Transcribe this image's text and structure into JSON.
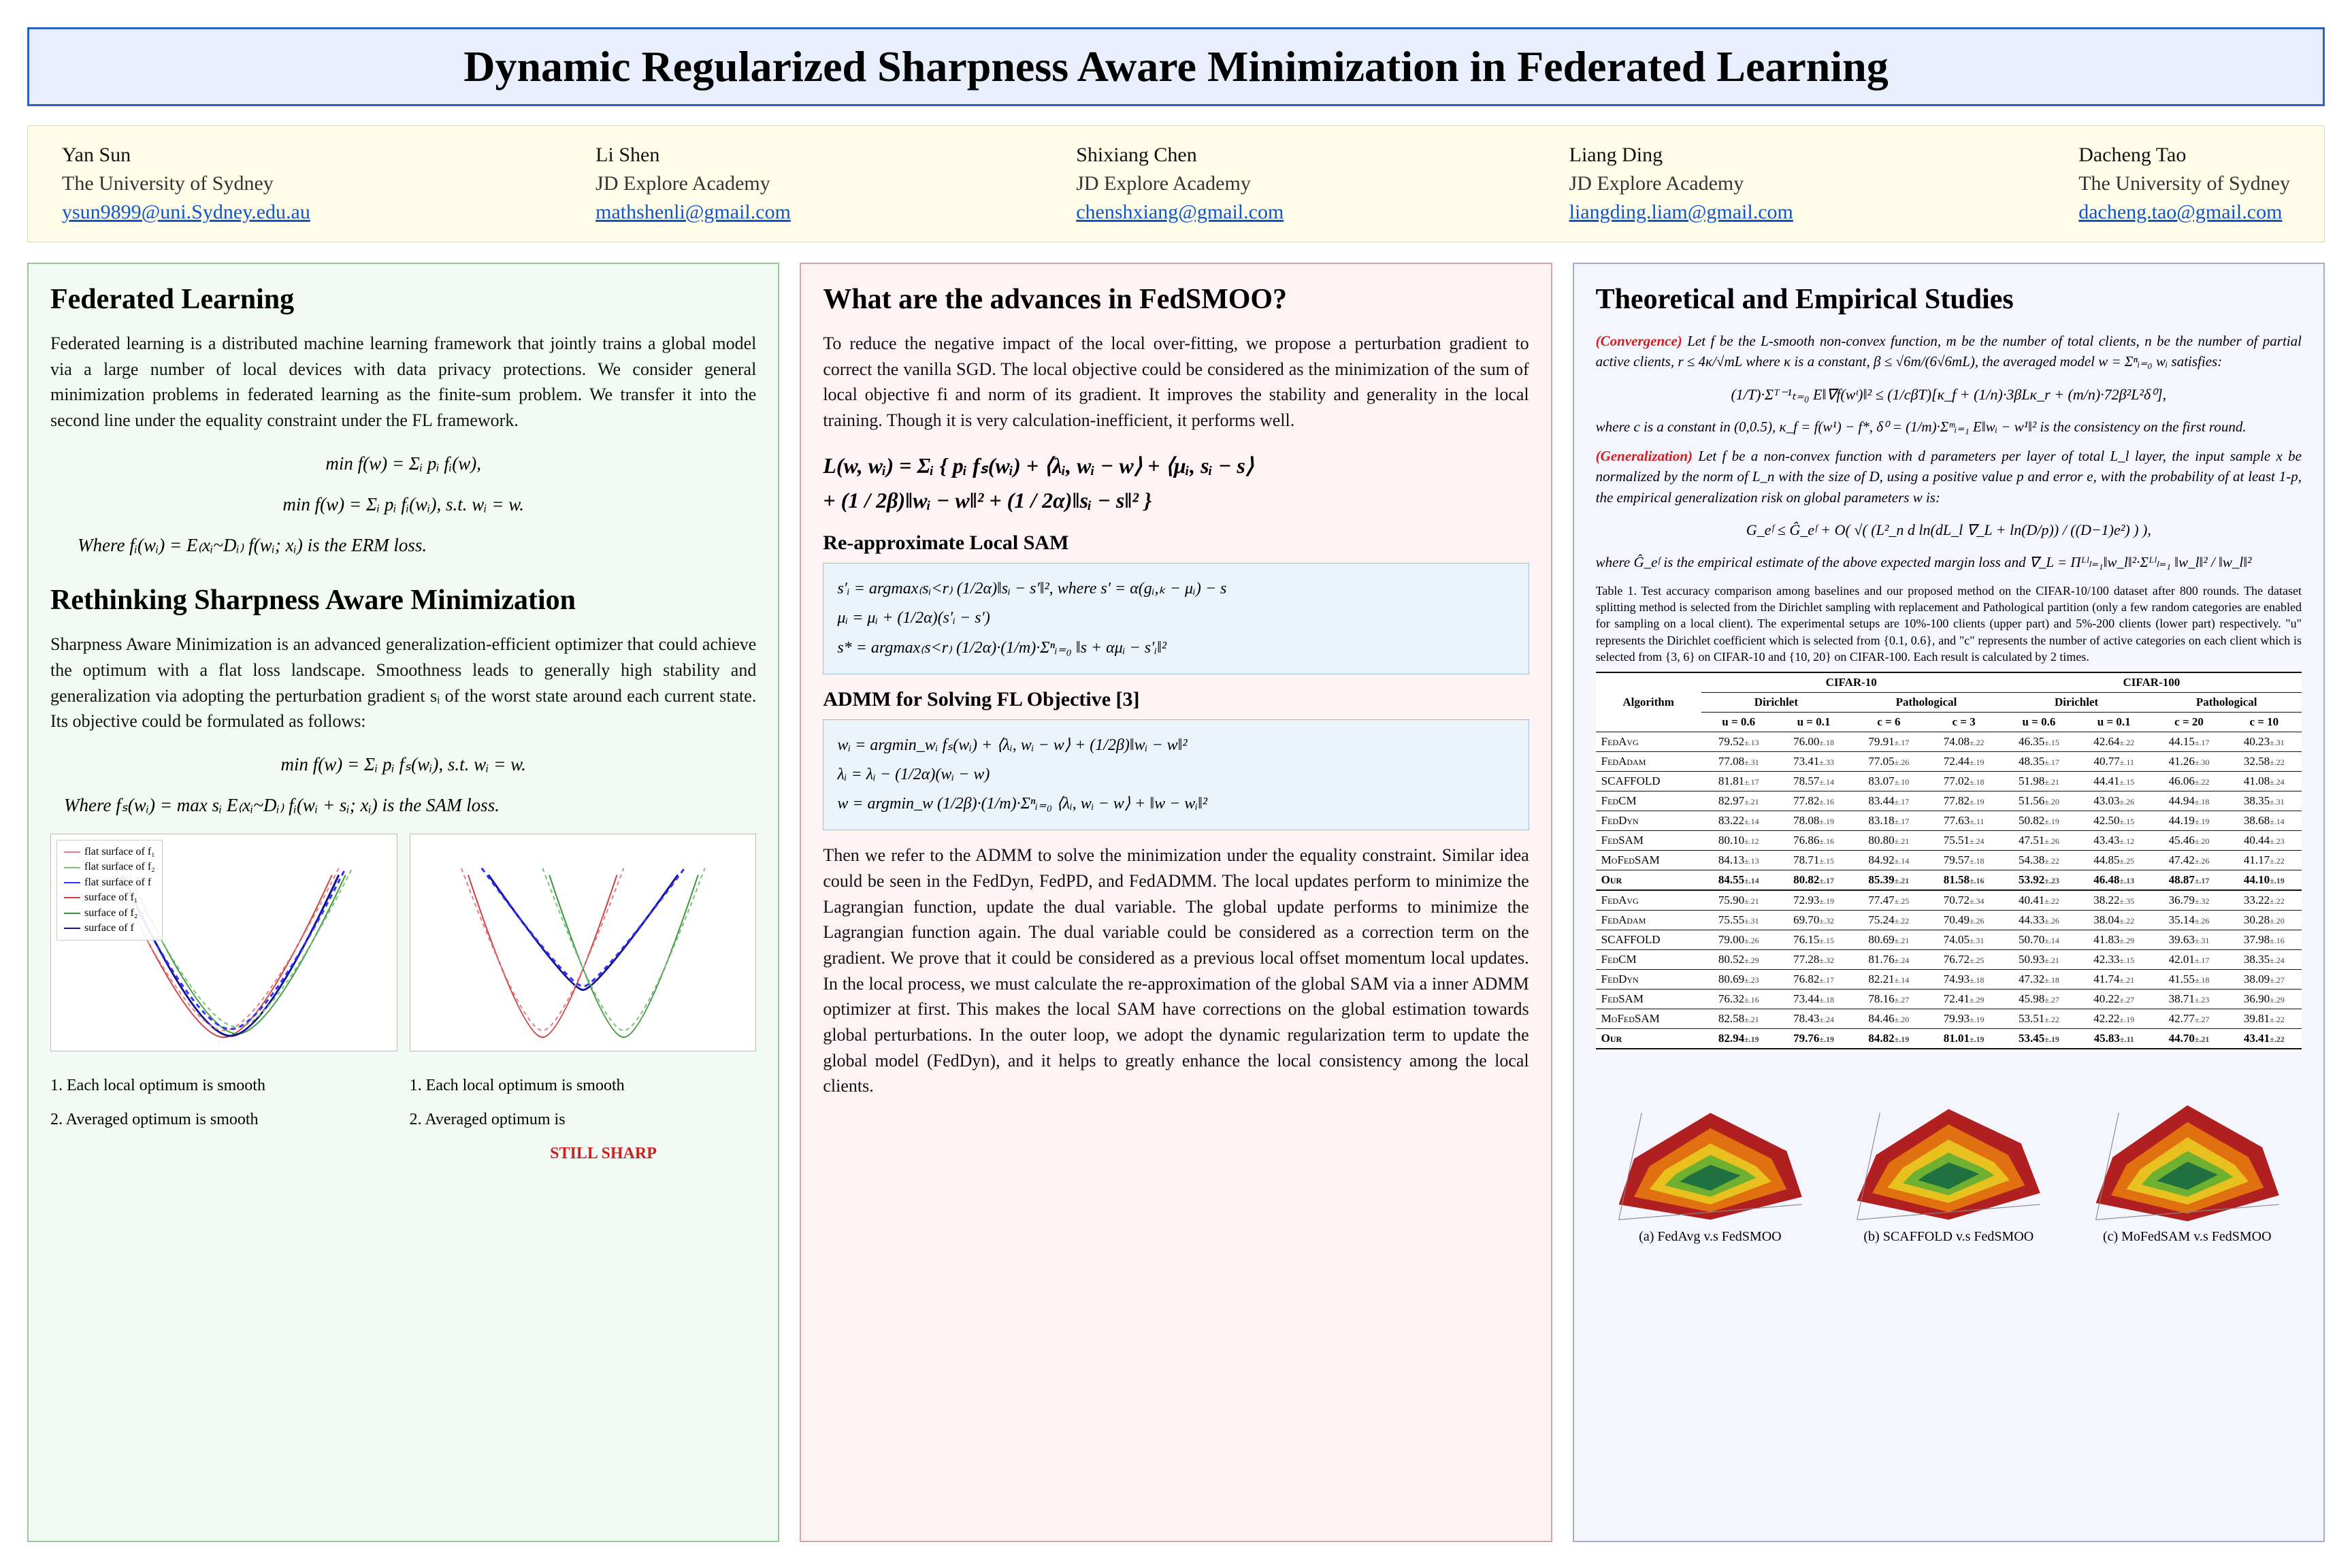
{
  "title": "Dynamic Regularized Sharpness Aware Minimization in Federated Learning",
  "authors": [
    {
      "name": "Yan Sun",
      "aff": "The University of Sydney",
      "email": "ysun9899@uni.Sydney.edu.au"
    },
    {
      "name": "Li Shen",
      "aff": "JD Explore Academy",
      "email": "mathshenli@gmail.com"
    },
    {
      "name": "Shixiang Chen",
      "aff": "JD Explore Academy",
      "email": "chenshxiang@gmail.com"
    },
    {
      "name": "Liang Ding",
      "aff": "JD Explore Academy",
      "email": "liangding.liam@gmail.com"
    },
    {
      "name": "Dacheng Tao",
      "aff": "The University of Sydney",
      "email": "dacheng.tao@gmail.com"
    }
  ],
  "col1": {
    "h_fl": "Federated Learning",
    "p_fl": "Federated learning is a distributed machine learning framework that jointly trains a global model via a large number of local devices with data privacy protections. We consider general minimization problems in federated learning as the finite-sum problem. We transfer it into the second line under the equality constraint under the FL framework.",
    "eq1": "min  f(w) = Σᵢ pᵢ fᵢ(w),",
    "eq2": "min  f(w) = Σᵢ pᵢ fᵢ(wᵢ),   s.t. wᵢ = w.",
    "eq3": "Where fᵢ(wᵢ) = E₍xᵢ~Dᵢ₎ f(wᵢ; xᵢ) is the ERM loss.",
    "h_sam": "Rethinking Sharpness Aware Minimization",
    "p_sam": "Sharpness Aware Minimization is an advanced generalization-efficient optimizer that could achieve the optimum with a flat loss landscape. Smoothness leads to generally high stability and generalization via adopting the perturbation gradient sᵢ of the worst state around each current state. Its objective could be formulated as follows:",
    "eq4": "min  f(w) = Σᵢ pᵢ fₛ(wᵢ),   s.t. wᵢ = w.",
    "eq5": "Where fₛ(wᵢ) = max sᵢ E₍xᵢ~Dᵢ₎ fᵢ(wᵢ + sᵢ; xᵢ) is the SAM loss.",
    "legend": [
      "flat surface of f₁",
      "flat surface of f₂",
      "flat surface of f",
      "surface of f₁",
      "surface of f₂",
      "surface of f"
    ],
    "cap_left_1": "1.  Each local optimum is smooth",
    "cap_left_2": "2.  Averaged optimum is smooth",
    "cap_right_1": "1.  Each local optimum is smooth",
    "cap_right_2": "2.  Averaged optimum is",
    "still_sharp": "STILL SHARP",
    "curve_colors": {
      "f1_flat": "#e08080",
      "f2_flat": "#7abf7a",
      "f_flat": "#3030ff",
      "f1": "#d04040",
      "f2": "#3a9a3a",
      "f": "#101090"
    }
  },
  "col2": {
    "h": "What are the advances in FedSMOO?",
    "p1": "To reduce the negative impact of the local over-fitting, we propose a perturbation gradient to correct the vanilla SGD. The local objective could be considered as the minimization of the sum of local objective fi and norm of its gradient. It improves the stability and generality in the local training. Though it is very calculation-inefficient, it performs well.",
    "big_eq": "L(w, wᵢ) = Σᵢ { pᵢ fₛ(wᵢ)  +  ⟨λᵢ, wᵢ − w⟩   +   ⟨μᵢ, sᵢ − s⟩\n                          +   (1 / 2β)‖wᵢ − w‖²   +   (1 / 2α)‖sᵢ − s‖² }",
    "sub_reapprox": "Re-approximate Local SAM",
    "box1_l1": "s′ᵢ = argmax₍sᵢ<r₎ (1/2α)‖sᵢ − s′‖²,  where s′ = α(gᵢ,ₖ − μᵢ) − s",
    "box1_l2": "μᵢ = μᵢ + (1/2α)(s′ᵢ − s′)",
    "box1_l3": "s* = argmax₍s<r₎ (1/2α)·(1/m)·Σⁿᵢ₌₀ ‖s + αμᵢ − s′ᵢ‖²",
    "sub_admm": "ADMM for Solving FL Objective [3]",
    "box2_l1": "wᵢ = argmin_wᵢ  fₛ(wᵢ) + ⟨λᵢ, wᵢ − w⟩ + (1/2β)‖wᵢ − w‖²",
    "box2_l2": "λᵢ = λᵢ − (1/2α)(wᵢ − w)",
    "box2_l3": "w  = argmin_w  (1/2β)·(1/m)·Σⁿᵢ₌₀ ⟨λᵢ, wᵢ − w⟩ + ‖w − wᵢ‖²",
    "p2": "Then we refer to the ADMM to solve the minimization under the equality constraint. Similar idea could be seen in the FedDyn, FedPD, and FedADMM. The local updates perform to minimize the Lagrangian function, update the dual variable. The global update performs to minimize the Lagrangian function again. The dual variable could be considered as a correction term on the gradient. We prove that it could be considered as a previous local offset momentum local updates. In the local process, we must calculate the re-approximation of the global SAM via a inner ADMM optimizer at first. This makes the local SAM have corrections on the global estimation towards global perturbations. In the outer loop, we adopt the dynamic regularization term to update the global model (FedDyn), and it helps to greatly enhance the local consistency among the local clients."
  },
  "col3": {
    "h": "Theoretical and Empirical Studies",
    "conv_label": "(Convergence)",
    "conv_text": " Let f be the L-smooth non-convex function, m be the number of total clients, n be the number of partial active clients, r ≤ 4κ/√mL where κ is a constant, β ≤ √6m/(6√6mL), the averaged model w = Σⁿᵢ₌₀ wᵢ satisfies:",
    "conv_eq": "(1/T)·Σᵀ⁻¹ₜ₌₀ E‖∇f(wᵗ)‖² ≤ (1/cβT)[κ_f + (1/n)·3βLκ_r + (m/n)·72β²L²δ⁰],",
    "conv_note": "where c is a constant in (0,0.5), κ_f = f(w¹) − f*, δ⁰ = (1/m)·Σᵐᵢ₌₁ E‖wᵢ − w¹‖² is the consistency on the first round.",
    "gen_label": "(Generalization)",
    "gen_text": " Let f be a non-convex function with d parameters per layer of total L_l layer, the input sample x be normalized by the norm of L_n with the size of D, using a positive value p and error e, with the probability of at least 1-p, the empirical generalization risk on global parameters w is:",
    "gen_eq": "G_eᶠ ≤ Ĝ_eᶠ + O( √( (L²_n d ln(dL_l ∇_L + ln(D/p)) / ((D−1)e²) ) ),",
    "gen_note": "where Ĝ_eᶠ is the empirical estimate of the above expected margin loss and ∇_L = Πᴸˡₗ₌₁‖w_l‖²·Σᴸˡₗ₌₁ ‖w_l‖² / ‖w_l‖²",
    "table_caption": "Table 1. Test accuracy comparison among baselines and our proposed method on the CIFAR-10/100 dataset after 800 rounds. The dataset splitting method is selected from the Dirichlet sampling with replacement and Pathological partition (only a few random categories are enabled for sampling on a local client). The experimental setups are 10%-100 clients (upper part) and 5%-200 clients (lower part) respectively. \"u\" represents the Dirichlet coefficient which is selected from {0.1, 0.6}, and \"c\" represents the number of active categories on each client which is selected from {3, 6} on CIFAR-10 and {10, 20} on CIFAR-100. Each result is calculated by 2 times.",
    "table": {
      "algs": [
        "FedAvg",
        "FedAdam",
        "SCAFFOLD",
        "FedCM",
        "FedDyn",
        "FedSAM",
        "MoFedSAM",
        "Our"
      ],
      "rows_upper": [
        [
          "79.52",
          ".13",
          "76.00",
          ".18",
          "79.91",
          ".17",
          "74.08",
          ".22",
          "46.35",
          ".15",
          "42.64",
          ".22",
          "44.15",
          ".17",
          "40.23",
          ".31"
        ],
        [
          "77.08",
          ".31",
          "73.41",
          ".33",
          "77.05",
          ".26",
          "72.44",
          ".19",
          "48.35",
          ".17",
          "40.77",
          ".11",
          "41.26",
          ".30",
          "32.58",
          ".22"
        ],
        [
          "81.81",
          ".17",
          "78.57",
          ".14",
          "83.07",
          ".10",
          "77.02",
          ".18",
          "51.98",
          ".21",
          "44.41",
          ".15",
          "46.06",
          ".22",
          "41.08",
          ".24"
        ],
        [
          "82.97",
          ".21",
          "77.82",
          ".16",
          "83.44",
          ".17",
          "77.82",
          ".19",
          "51.56",
          ".20",
          "43.03",
          ".26",
          "44.94",
          ".18",
          "38.35",
          ".31"
        ],
        [
          "83.22",
          ".14",
          "78.08",
          ".19",
          "83.18",
          ".17",
          "77.63",
          ".11",
          "50.82",
          ".19",
          "42.50",
          ".15",
          "44.19",
          ".19",
          "38.68",
          ".14"
        ],
        [
          "80.10",
          ".12",
          "76.86",
          ".16",
          "80.80",
          ".21",
          "75.51",
          ".24",
          "47.51",
          ".26",
          "43.43",
          ".12",
          "45.46",
          ".20",
          "40.44",
          ".23"
        ],
        [
          "84.13",
          ".13",
          "78.71",
          ".15",
          "84.92",
          ".14",
          "79.57",
          ".18",
          "54.38",
          ".22",
          "44.85",
          ".25",
          "47.42",
          ".26",
          "41.17",
          ".22"
        ],
        [
          "84.55",
          ".14",
          "80.82",
          ".17",
          "85.39",
          ".21",
          "81.58",
          ".16",
          "53.92",
          ".23",
          "46.48",
          ".13",
          "48.87",
          ".17",
          "44.10",
          ".19"
        ]
      ],
      "rows_lower": [
        [
          "75.90",
          ".21",
          "72.93",
          ".19",
          "77.47",
          ".25",
          "70.72",
          ".34",
          "40.41",
          ".22",
          "38.22",
          ".35",
          "36.79",
          ".32",
          "33.22",
          ".22"
        ],
        [
          "75.55",
          ".31",
          "69.70",
          ".32",
          "75.24",
          ".22",
          "70.49",
          ".26",
          "44.33",
          ".26",
          "38.04",
          ".22",
          "35.14",
          ".26",
          "30.28",
          ".20"
        ],
        [
          "79.00",
          ".26",
          "76.15",
          ".15",
          "80.69",
          ".21",
          "74.05",
          ".31",
          "50.70",
          ".14",
          "41.83",
          ".29",
          "39.63",
          ".31",
          "37.98",
          ".16"
        ],
        [
          "80.52",
          ".29",
          "77.28",
          ".32",
          "81.76",
          ".24",
          "76.72",
          ".25",
          "50.93",
          ".21",
          "42.33",
          ".15",
          "42.01",
          ".17",
          "38.35",
          ".24"
        ],
        [
          "80.69",
          ".23",
          "76.82",
          ".17",
          "82.21",
          ".14",
          "74.93",
          ".18",
          "47.32",
          ".18",
          "41.74",
          ".21",
          "41.55",
          ".18",
          "38.09",
          ".27"
        ],
        [
          "76.32",
          ".16",
          "73.44",
          ".18",
          "78.16",
          ".27",
          "72.41",
          ".29",
          "45.98",
          ".27",
          "40.22",
          ".27",
          "38.71",
          ".23",
          "36.90",
          ".29"
        ],
        [
          "82.58",
          ".21",
          "78.43",
          ".24",
          "84.46",
          ".20",
          "79.93",
          ".19",
          "53.51",
          ".22",
          "42.22",
          ".19",
          "42.77",
          ".27",
          "39.81",
          ".22"
        ],
        [
          "82.94",
          ".19",
          "79.76",
          ".19",
          "84.82",
          ".19",
          "81.01",
          ".19",
          "53.45",
          ".19",
          "45.83",
          ".11",
          "44.70",
          ".21",
          "43.41",
          ".22"
        ]
      ],
      "header_cols": [
        "u = 0.6",
        "u = 0.1",
        "c = 6",
        "c = 3",
        "u = 0.6",
        "u = 0.1",
        "c = 20",
        "c = 10"
      ]
    },
    "surf_caps": [
      "(a) FedAvg v.s FedSMOO",
      "(b) SCAFFOLD v.s FedSMOO",
      "(c) MoFedSAM v.s FedSMOO"
    ],
    "surf_colors": [
      "#b02020",
      "#e07010",
      "#e8c020",
      "#70b030",
      "#207040",
      "#204080"
    ]
  }
}
